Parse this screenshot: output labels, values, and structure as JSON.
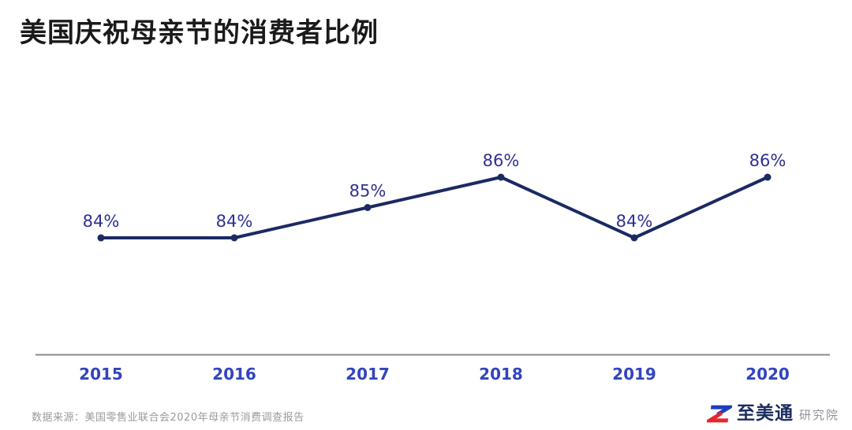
{
  "header": {
    "title": "美国庆祝母亲节的消费者比例"
  },
  "footer": {
    "source": "数据来源：美国零售业联合会2020年母亲节消费调查报告",
    "logo": {
      "mark": "z-mark",
      "brand": "至美通",
      "suffix": "研究院"
    }
  },
  "colors": {
    "line": "#1b2a63",
    "marker": "#1b2a63",
    "data_label": "#2e3192",
    "tick_label": "#3244be",
    "axis": "#8a8a8a",
    "logo_blue": "#1e3dbe",
    "logo_red": "#e8262c"
  },
  "chart_data": {
    "type": "line",
    "title": "美国庆祝母亲节的消费者比例",
    "categories": [
      "2015",
      "2016",
      "2017",
      "2018",
      "2019",
      "2020"
    ],
    "values": [
      84,
      84,
      85,
      86,
      84,
      86
    ],
    "point_labels": [
      "84%",
      "84%",
      "85%",
      "86%",
      "84%",
      "86%"
    ],
    "ylim": [
      82,
      88
    ],
    "xlabel": "",
    "ylabel": "",
    "grid": false,
    "legend": "none"
  }
}
